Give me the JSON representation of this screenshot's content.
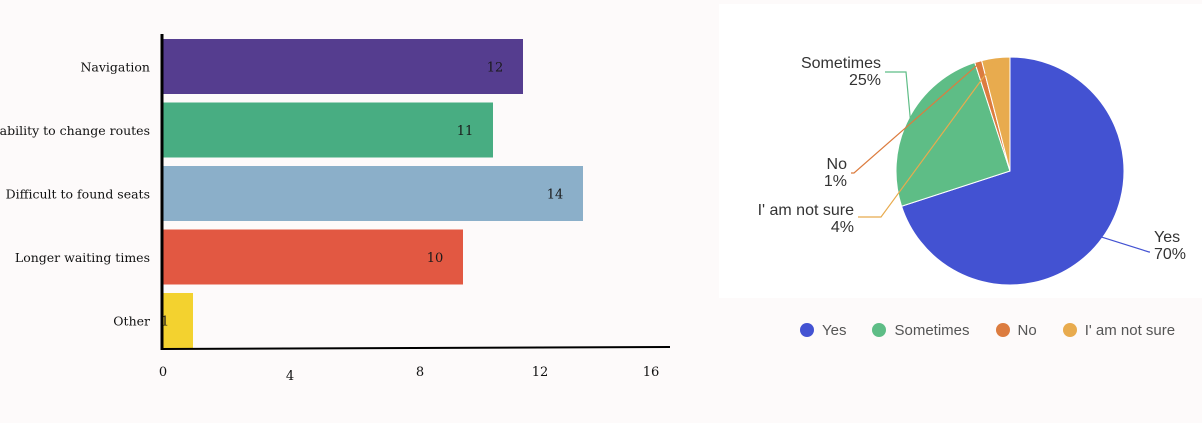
{
  "chart_data": [
    {
      "type": "bar",
      "orientation": "horizontal",
      "categories": [
        "Navigation",
        "Inability to change routes",
        "Difficult to found seats",
        "Longer waiting times",
        "Other"
      ],
      "values": [
        12,
        11,
        14,
        10,
        1
      ],
      "value_labels": [
        "12",
        "11",
        "14",
        "10",
        "1"
      ],
      "bar_colors": [
        "#553d8f",
        "#48ad82",
        "#8bafc9",
        "#e25842",
        "#f3d22f"
      ],
      "xlim": [
        0,
        16
      ],
      "xticks": [
        0,
        4,
        8,
        12,
        16
      ],
      "xtick_labels": [
        "0",
        "4",
        "8",
        "12",
        "16"
      ],
      "grid": false,
      "legend": "none",
      "title": "",
      "xlabel": "",
      "ylabel": ""
    },
    {
      "type": "pie",
      "labels": [
        "Yes",
        "Sometimes",
        "No",
        "I' am not sure"
      ],
      "values": [
        70,
        25,
        1,
        4
      ],
      "percent_labels": [
        "70%",
        "25%",
        "1%",
        "4%"
      ],
      "colors": [
        "#4352d2",
        "#5ebd86",
        "#dc7c3f",
        "#e8ab4e"
      ],
      "legend": "bottom",
      "title": ""
    }
  ]
}
